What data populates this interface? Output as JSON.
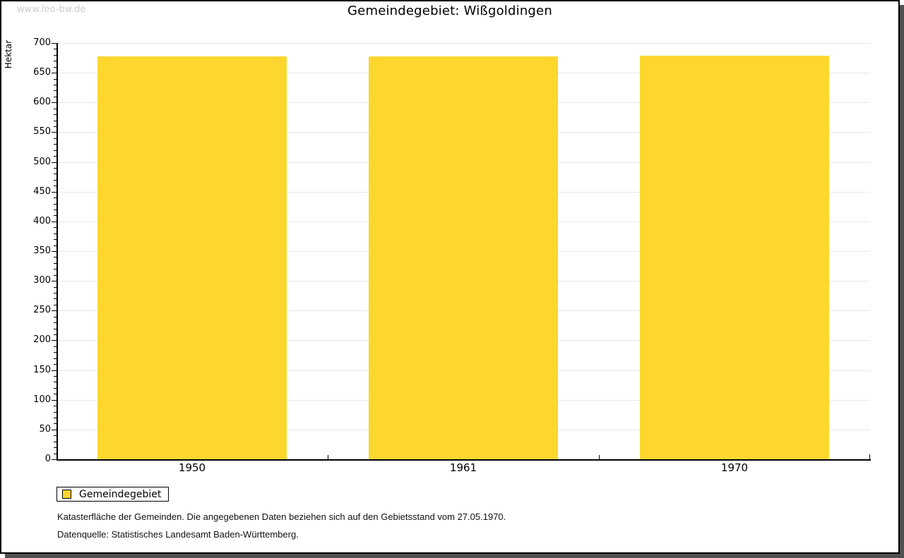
{
  "watermark": "www.leo-bw.de",
  "title": "Gemeindegebiet: Wißgoldingen",
  "chart_data": {
    "type": "bar",
    "title": "Gemeindegebiet: Wißgoldingen",
    "ylabel": "Hektar",
    "xlabel": "",
    "categories": [
      "1950",
      "1961",
      "1970"
    ],
    "series": [
      {
        "name": "Gemeindegebiet",
        "values": [
          678,
          678,
          679
        ]
      }
    ],
    "ylim": [
      0,
      700
    ],
    "ytick_major": 50,
    "ytick_minor": 10,
    "grid": true,
    "legend_position": "bottom-left"
  },
  "legend": {
    "items": [
      {
        "label": "Gemeindegebiet",
        "color": "#FDD62E"
      }
    ]
  },
  "footnotes": [
    "Katasterfläche der Gemeinden. Die angegebenen Daten beziehen sich auf den Gebietsstand vom 27.05.1970.",
    "Datenquelle: Statistisches Landesamt Baden-Württemberg."
  ],
  "colors": {
    "bar": "#FDD62E",
    "grid": "#E8E8E8",
    "axis": "#000000",
    "watermark": "#CCCCCC",
    "frame_shadow": "#515151",
    "background": "#FFFFFF"
  }
}
